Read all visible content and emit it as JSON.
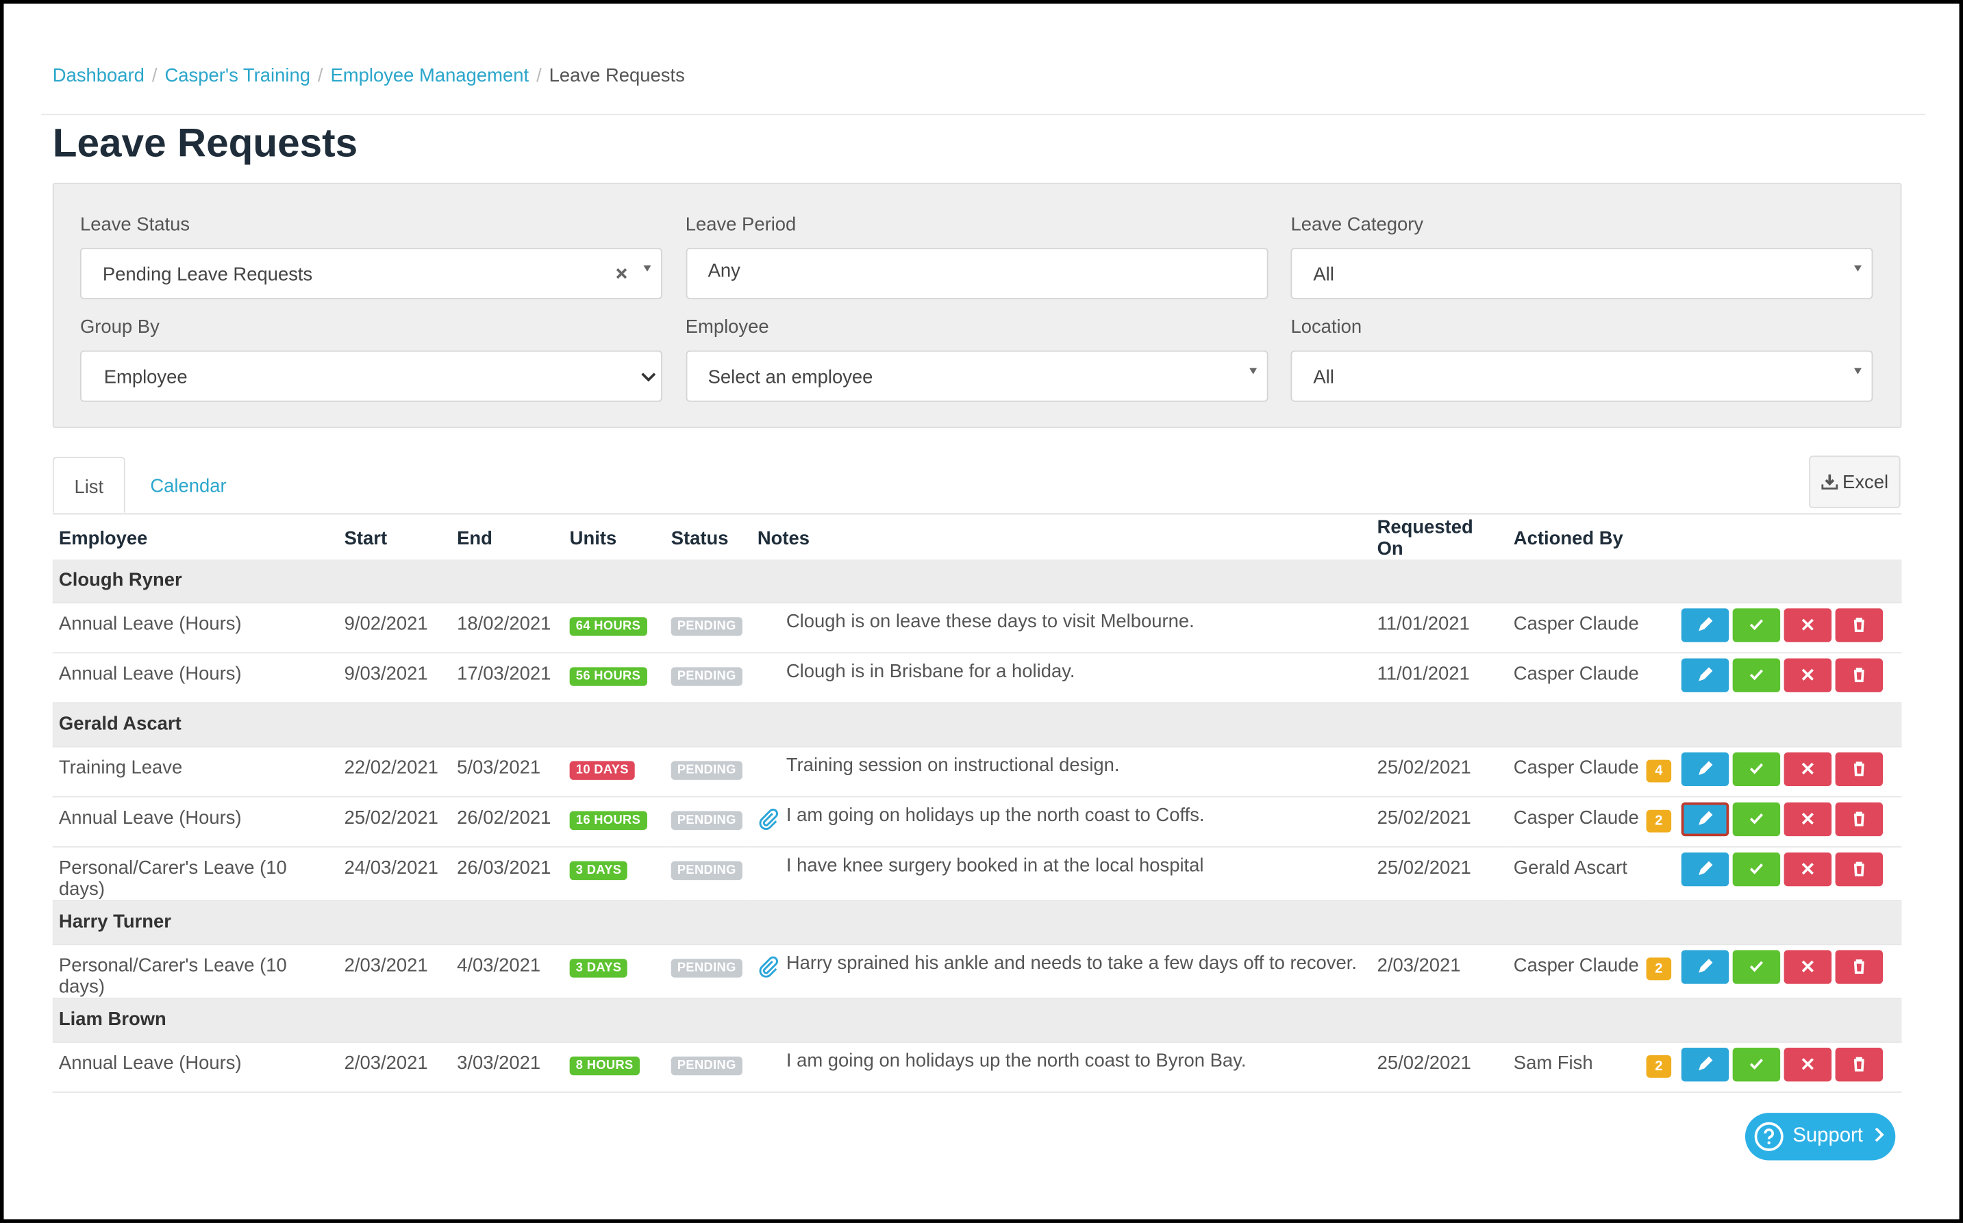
{
  "breadcrumb": {
    "items": [
      "Dashboard",
      "Casper's Training",
      "Employee Management"
    ],
    "current": "Leave Requests",
    "separator": "/"
  },
  "header": {
    "title": "Leave Requests"
  },
  "filters": [
    {
      "label": "Leave Status",
      "value": "Pending Leave Requests"
    },
    {
      "label": "Leave Period",
      "value": "Any"
    },
    {
      "label": "Leave Category",
      "value": "All"
    },
    {
      "label": "Group By",
      "value": "Employee"
    },
    {
      "label": "Employee",
      "value": "Select an employee"
    },
    {
      "label": "Location",
      "value": "All"
    }
  ],
  "tabs": [
    "List",
    "Calendar"
  ],
  "export": "Excel",
  "table": {
    "columns": [
      "Employee",
      "Start",
      "End",
      "Units",
      "Status",
      "Notes",
      "Requested On",
      "Actioned By"
    ],
    "groups": [
      {
        "name": "Clough Ryner",
        "rows": [
          {
            "type": "Annual Leave (Hours)",
            "start": "9/02/2021",
            "end": "18/02/2021",
            "units": "64 HOURS",
            "units_color": "#5cc22f",
            "status": "PENDING",
            "attachment": false,
            "notes": "Clough is on leave these days to visit Melbourne.",
            "requested_on": "11/01/2021",
            "actioned_by": "Casper Claude"
          },
          {
            "type": "Annual Leave (Hours)",
            "start": "9/03/2021",
            "end": "17/03/2021",
            "units": "56 HOURS",
            "units_color": "#5cc22f",
            "status": "PENDING",
            "attachment": false,
            "notes": "Clough is in Brisbane for a holiday.",
            "requested_on": "11/01/2021",
            "actioned_by": "Casper Claude"
          }
        ]
      },
      {
        "name": "Gerald Ascart",
        "rows": [
          {
            "type": "Training Leave",
            "start": "22/02/2021",
            "end": "5/03/2021",
            "units": "10 DAYS",
            "units_color": "#e0475a",
            "status": "PENDING",
            "attachment": false,
            "notes": "Training session on instructional design.",
            "requested_on": "25/02/2021",
            "actioned_by": "Casper Claude",
            "count": "4"
          },
          {
            "type": "Annual Leave (Hours)",
            "start": "25/02/2021",
            "end": "26/02/2021",
            "units": "16 HOURS",
            "units_color": "#5cc22f",
            "status": "PENDING",
            "attachment": true,
            "notes": "I am going on holidays up the north coast to Coffs.",
            "requested_on": "25/02/2021",
            "actioned_by": "Casper Claude",
            "count": "2"
          },
          {
            "type": "Personal/Carer's Leave (10 days)",
            "start": "24/03/2021",
            "end": "26/03/2021",
            "units": "3 DAYS",
            "units_color": "#5cc22f",
            "status": "PENDING",
            "attachment": false,
            "notes": "I have knee surgery booked in at the local hospital",
            "requested_on": "25/02/2021",
            "actioned_by": "Gerald Ascart"
          }
        ]
      },
      {
        "name": "Harry Turner",
        "rows": [
          {
            "type": "Personal/Carer's Leave (10 days)",
            "start": "2/03/2021",
            "end": "4/03/2021",
            "units": "3 DAYS",
            "units_color": "#5cc22f",
            "status": "PENDING",
            "attachment": true,
            "notes": "Harry sprained his ankle and needs to take a few days off to recover.",
            "requested_on": "2/03/2021",
            "actioned_by": "Casper Claude",
            "count": "2"
          }
        ]
      },
      {
        "name": "Liam Brown",
        "rows": [
          {
            "type": "Annual Leave (Hours)",
            "start": "2/03/2021",
            "end": "3/03/2021",
            "units": "8 HOURS",
            "units_color": "#5cc22f",
            "status": "PENDING",
            "attachment": false,
            "notes": "I am going on holidays up the north coast to Byron Bay.",
            "requested_on": "25/02/2021",
            "actioned_by": "Sam Fish",
            "count": "2"
          }
        ]
      }
    ]
  },
  "support": "Support"
}
